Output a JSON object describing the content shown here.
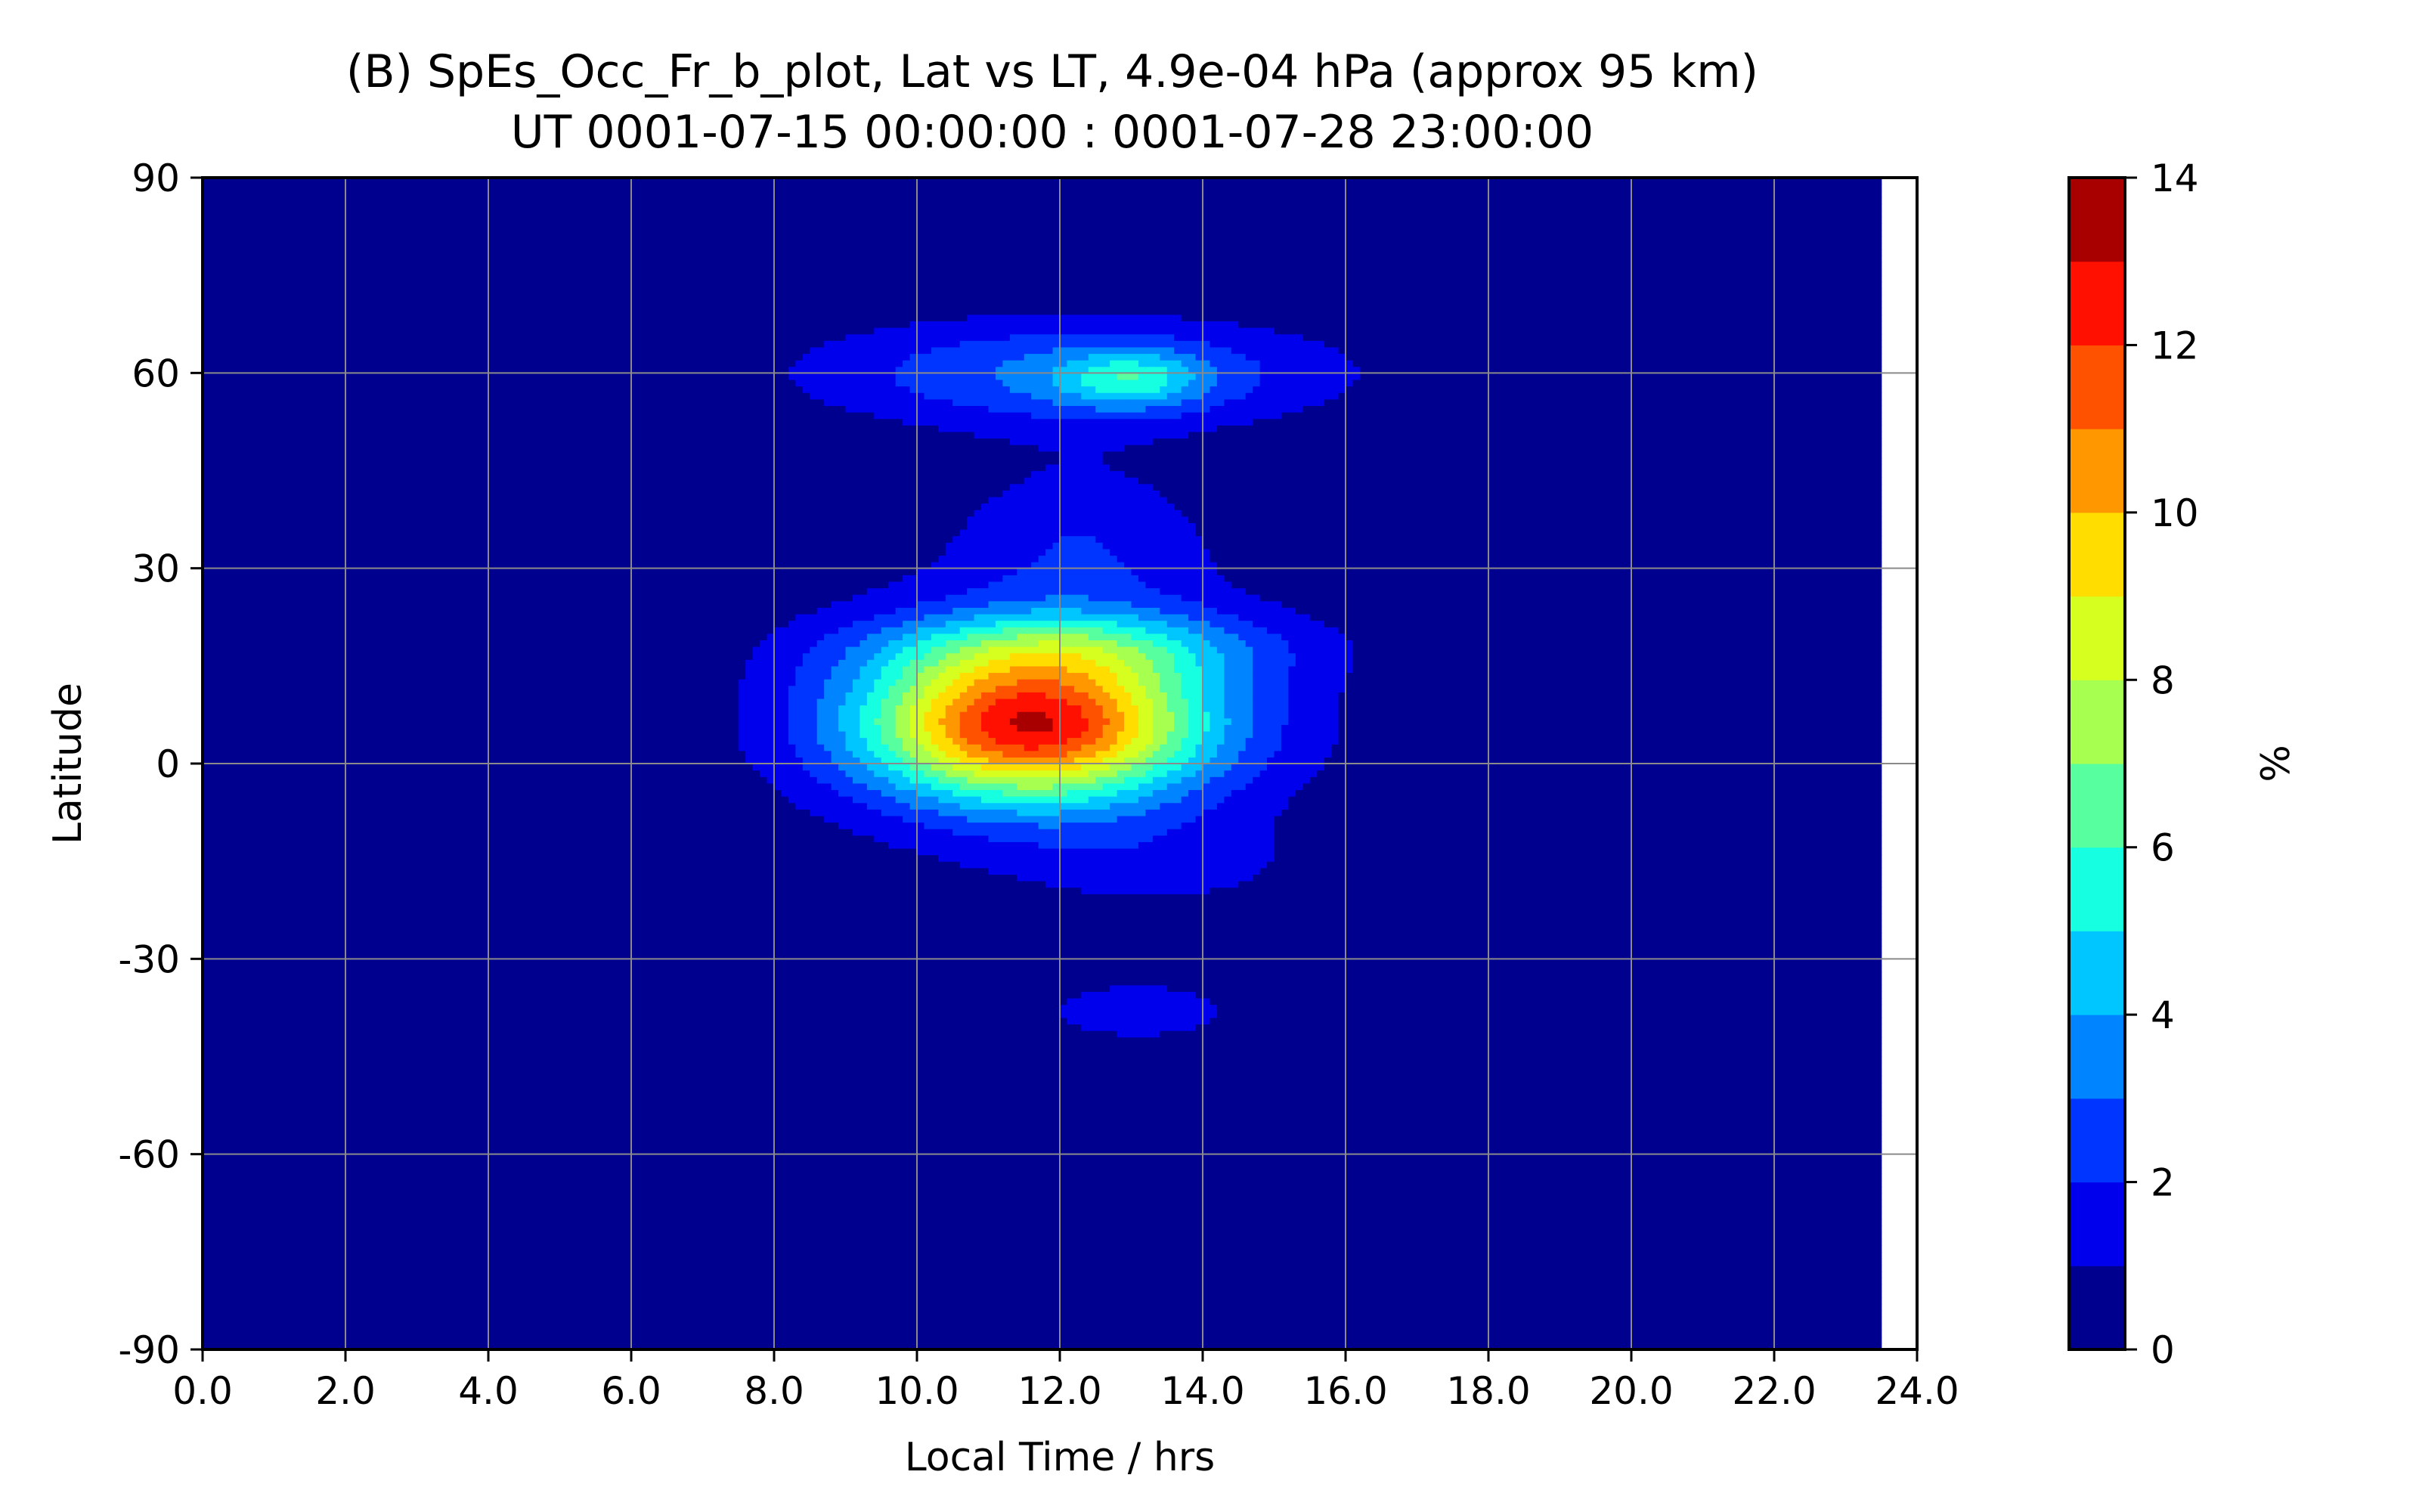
{
  "chart_data": {
    "type": "heatmap",
    "subtype": "filled-contour",
    "title_line1": "(B) SpEs_Occ_Fr_b_plot, Lat vs LT, 4.9e-04 hPa (approx 95 km)",
    "title_line2": "UT 0001-07-15 00:00:00 : 0001-07-28 23:00:00",
    "xlabel": "Local Time / hrs",
    "ylabel": "Latitude",
    "xlim": [
      0,
      24
    ],
    "ylim": [
      -90,
      90
    ],
    "x_data_max": 23.5,
    "xticks": [
      0,
      2,
      4,
      6,
      8,
      10,
      12,
      14,
      16,
      18,
      20,
      22,
      24
    ],
    "xtick_labels": [
      "0.0",
      "2.0",
      "4.0",
      "6.0",
      "8.0",
      "10.0",
      "12.0",
      "14.0",
      "16.0",
      "18.0",
      "20.0",
      "22.0",
      "24.0"
    ],
    "yticks": [
      90,
      60,
      30,
      0,
      -30,
      -60,
      -90
    ],
    "ytick_labels": [
      "90",
      "60",
      "30",
      "0",
      "-30",
      "-60",
      "-90"
    ],
    "grid": true,
    "colorbar": {
      "label": "%",
      "min": 0,
      "max": 14,
      "ticks": [
        14,
        12,
        10,
        8,
        6,
        4,
        2,
        0
      ],
      "tick_labels": [
        "14",
        "12",
        "10",
        "8",
        "6",
        "4",
        "2",
        "0"
      ],
      "levels": [
        0,
        1,
        2,
        3,
        4,
        5,
        6,
        7,
        8,
        9,
        10,
        11,
        12,
        13,
        14
      ],
      "colors": [
        "#00008f",
        "#0000ed",
        "#0035ff",
        "#0084ff",
        "#00c6ff",
        "#16ffe1",
        "#58ff9f",
        "#a7ff4f",
        "#d6ff20",
        "#ffdd00",
        "#ff9700",
        "#ff5200",
        "#ff1000",
        "#a80000"
      ]
    },
    "features": [
      {
        "name": "equatorial-peak",
        "lt_center": 11.6,
        "lat_center": 6,
        "lt_spread": 1.6,
        "lat_spread": 8,
        "peak_percent": 10.7
      },
      {
        "name": "equatorial-broad",
        "lt_center": 11.8,
        "lat_center": 8,
        "lt_spread": 2.6,
        "lat_spread": 14,
        "peak_percent": 2.5
      },
      {
        "name": "north-lobe",
        "lt_center": 12.2,
        "lat_center": 18,
        "lt_spread": 2.0,
        "lat_spread": 4,
        "peak_percent": 2.8
      },
      {
        "name": "southern-tail",
        "lt_center": 13.5,
        "lat_center": -16,
        "lt_spread": 1.6,
        "lat_spread": 5,
        "peak_percent": 1.0
      },
      {
        "name": "mid-latitude-bridge",
        "lt_center": 12.3,
        "lat_center": 35,
        "lt_spread": 1.3,
        "lat_spread": 9,
        "peak_percent": 1.6
      },
      {
        "name": "high-latitude-patch",
        "lt_center": 12.2,
        "lat_center": 60,
        "lt_spread": 2.6,
        "lat_spread": 6,
        "peak_percent": 3.2
      },
      {
        "name": "high-latitude-core",
        "lt_center": 13.0,
        "lat_center": 59,
        "lt_spread": 0.7,
        "lat_spread": 3,
        "peak_percent": 3.0
      },
      {
        "name": "south-patch",
        "lt_center": 13.1,
        "lat_center": -38,
        "lt_spread": 1.2,
        "lat_spread": 4,
        "peak_percent": 1.5
      }
    ]
  }
}
